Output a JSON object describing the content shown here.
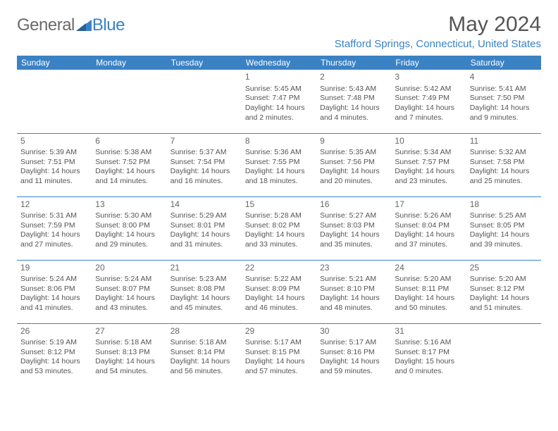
{
  "brand": {
    "part1": "General",
    "part2": "Blue"
  },
  "title": "May 2024",
  "location": "Stafford Springs, Connecticut, United States",
  "colors": {
    "accent": "#3b82c4",
    "text": "#555555",
    "background": "#ffffff"
  },
  "dayHeaders": [
    "Sunday",
    "Monday",
    "Tuesday",
    "Wednesday",
    "Thursday",
    "Friday",
    "Saturday"
  ],
  "weeks": [
    [
      {
        "day": "",
        "sunrise": "",
        "sunset": "",
        "daylight1": "",
        "daylight2": ""
      },
      {
        "day": "",
        "sunrise": "",
        "sunset": "",
        "daylight1": "",
        "daylight2": ""
      },
      {
        "day": "",
        "sunrise": "",
        "sunset": "",
        "daylight1": "",
        "daylight2": ""
      },
      {
        "day": "1",
        "sunrise": "Sunrise: 5:45 AM",
        "sunset": "Sunset: 7:47 PM",
        "daylight1": "Daylight: 14 hours",
        "daylight2": "and 2 minutes."
      },
      {
        "day": "2",
        "sunrise": "Sunrise: 5:43 AM",
        "sunset": "Sunset: 7:48 PM",
        "daylight1": "Daylight: 14 hours",
        "daylight2": "and 4 minutes."
      },
      {
        "day": "3",
        "sunrise": "Sunrise: 5:42 AM",
        "sunset": "Sunset: 7:49 PM",
        "daylight1": "Daylight: 14 hours",
        "daylight2": "and 7 minutes."
      },
      {
        "day": "4",
        "sunrise": "Sunrise: 5:41 AM",
        "sunset": "Sunset: 7:50 PM",
        "daylight1": "Daylight: 14 hours",
        "daylight2": "and 9 minutes."
      }
    ],
    [
      {
        "day": "5",
        "sunrise": "Sunrise: 5:39 AM",
        "sunset": "Sunset: 7:51 PM",
        "daylight1": "Daylight: 14 hours",
        "daylight2": "and 11 minutes."
      },
      {
        "day": "6",
        "sunrise": "Sunrise: 5:38 AM",
        "sunset": "Sunset: 7:52 PM",
        "daylight1": "Daylight: 14 hours",
        "daylight2": "and 14 minutes."
      },
      {
        "day": "7",
        "sunrise": "Sunrise: 5:37 AM",
        "sunset": "Sunset: 7:54 PM",
        "daylight1": "Daylight: 14 hours",
        "daylight2": "and 16 minutes."
      },
      {
        "day": "8",
        "sunrise": "Sunrise: 5:36 AM",
        "sunset": "Sunset: 7:55 PM",
        "daylight1": "Daylight: 14 hours",
        "daylight2": "and 18 minutes."
      },
      {
        "day": "9",
        "sunrise": "Sunrise: 5:35 AM",
        "sunset": "Sunset: 7:56 PM",
        "daylight1": "Daylight: 14 hours",
        "daylight2": "and 20 minutes."
      },
      {
        "day": "10",
        "sunrise": "Sunrise: 5:34 AM",
        "sunset": "Sunset: 7:57 PM",
        "daylight1": "Daylight: 14 hours",
        "daylight2": "and 23 minutes."
      },
      {
        "day": "11",
        "sunrise": "Sunrise: 5:32 AM",
        "sunset": "Sunset: 7:58 PM",
        "daylight1": "Daylight: 14 hours",
        "daylight2": "and 25 minutes."
      }
    ],
    [
      {
        "day": "12",
        "sunrise": "Sunrise: 5:31 AM",
        "sunset": "Sunset: 7:59 PM",
        "daylight1": "Daylight: 14 hours",
        "daylight2": "and 27 minutes."
      },
      {
        "day": "13",
        "sunrise": "Sunrise: 5:30 AM",
        "sunset": "Sunset: 8:00 PM",
        "daylight1": "Daylight: 14 hours",
        "daylight2": "and 29 minutes."
      },
      {
        "day": "14",
        "sunrise": "Sunrise: 5:29 AM",
        "sunset": "Sunset: 8:01 PM",
        "daylight1": "Daylight: 14 hours",
        "daylight2": "and 31 minutes."
      },
      {
        "day": "15",
        "sunrise": "Sunrise: 5:28 AM",
        "sunset": "Sunset: 8:02 PM",
        "daylight1": "Daylight: 14 hours",
        "daylight2": "and 33 minutes."
      },
      {
        "day": "16",
        "sunrise": "Sunrise: 5:27 AM",
        "sunset": "Sunset: 8:03 PM",
        "daylight1": "Daylight: 14 hours",
        "daylight2": "and 35 minutes."
      },
      {
        "day": "17",
        "sunrise": "Sunrise: 5:26 AM",
        "sunset": "Sunset: 8:04 PM",
        "daylight1": "Daylight: 14 hours",
        "daylight2": "and 37 minutes."
      },
      {
        "day": "18",
        "sunrise": "Sunrise: 5:25 AM",
        "sunset": "Sunset: 8:05 PM",
        "daylight1": "Daylight: 14 hours",
        "daylight2": "and 39 minutes."
      }
    ],
    [
      {
        "day": "19",
        "sunrise": "Sunrise: 5:24 AM",
        "sunset": "Sunset: 8:06 PM",
        "daylight1": "Daylight: 14 hours",
        "daylight2": "and 41 minutes."
      },
      {
        "day": "20",
        "sunrise": "Sunrise: 5:24 AM",
        "sunset": "Sunset: 8:07 PM",
        "daylight1": "Daylight: 14 hours",
        "daylight2": "and 43 minutes."
      },
      {
        "day": "21",
        "sunrise": "Sunrise: 5:23 AM",
        "sunset": "Sunset: 8:08 PM",
        "daylight1": "Daylight: 14 hours",
        "daylight2": "and 45 minutes."
      },
      {
        "day": "22",
        "sunrise": "Sunrise: 5:22 AM",
        "sunset": "Sunset: 8:09 PM",
        "daylight1": "Daylight: 14 hours",
        "daylight2": "and 46 minutes."
      },
      {
        "day": "23",
        "sunrise": "Sunrise: 5:21 AM",
        "sunset": "Sunset: 8:10 PM",
        "daylight1": "Daylight: 14 hours",
        "daylight2": "and 48 minutes."
      },
      {
        "day": "24",
        "sunrise": "Sunrise: 5:20 AM",
        "sunset": "Sunset: 8:11 PM",
        "daylight1": "Daylight: 14 hours",
        "daylight2": "and 50 minutes."
      },
      {
        "day": "25",
        "sunrise": "Sunrise: 5:20 AM",
        "sunset": "Sunset: 8:12 PM",
        "daylight1": "Daylight: 14 hours",
        "daylight2": "and 51 minutes."
      }
    ],
    [
      {
        "day": "26",
        "sunrise": "Sunrise: 5:19 AM",
        "sunset": "Sunset: 8:12 PM",
        "daylight1": "Daylight: 14 hours",
        "daylight2": "and 53 minutes."
      },
      {
        "day": "27",
        "sunrise": "Sunrise: 5:18 AM",
        "sunset": "Sunset: 8:13 PM",
        "daylight1": "Daylight: 14 hours",
        "daylight2": "and 54 minutes."
      },
      {
        "day": "28",
        "sunrise": "Sunrise: 5:18 AM",
        "sunset": "Sunset: 8:14 PM",
        "daylight1": "Daylight: 14 hours",
        "daylight2": "and 56 minutes."
      },
      {
        "day": "29",
        "sunrise": "Sunrise: 5:17 AM",
        "sunset": "Sunset: 8:15 PM",
        "daylight1": "Daylight: 14 hours",
        "daylight2": "and 57 minutes."
      },
      {
        "day": "30",
        "sunrise": "Sunrise: 5:17 AM",
        "sunset": "Sunset: 8:16 PM",
        "daylight1": "Daylight: 14 hours",
        "daylight2": "and 59 minutes."
      },
      {
        "day": "31",
        "sunrise": "Sunrise: 5:16 AM",
        "sunset": "Sunset: 8:17 PM",
        "daylight1": "Daylight: 15 hours",
        "daylight2": "and 0 minutes."
      },
      {
        "day": "",
        "sunrise": "",
        "sunset": "",
        "daylight1": "",
        "daylight2": ""
      }
    ]
  ]
}
